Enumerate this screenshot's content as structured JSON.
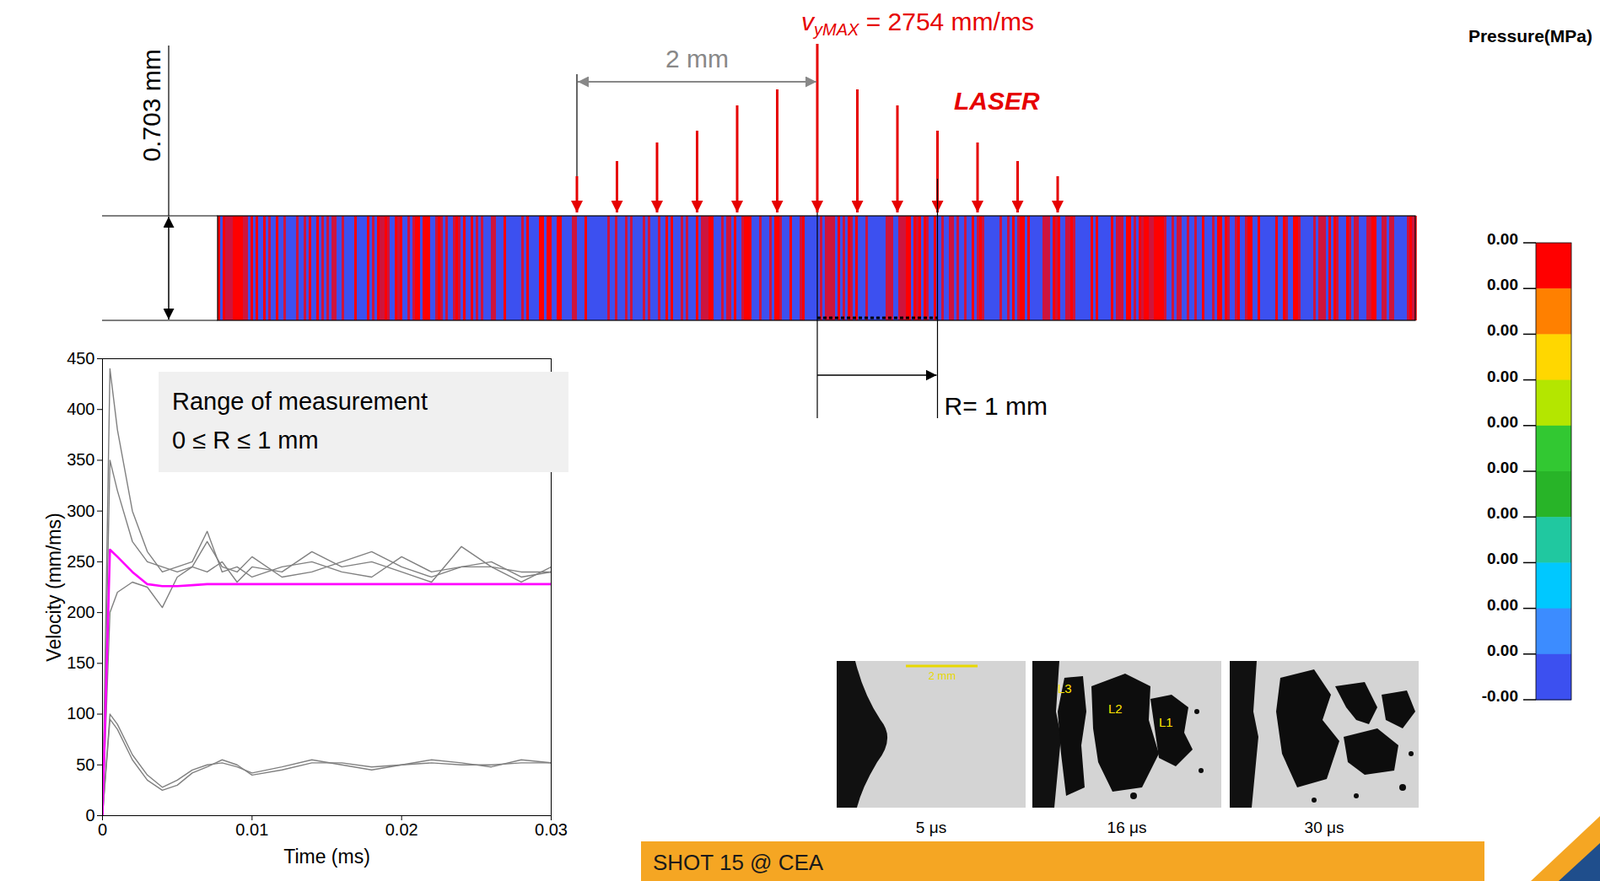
{
  "chart_data": {
    "type": "line",
    "x_label": "Time (ms)",
    "y_label": "Velocity (mm/ms)",
    "xlim": [
      0,
      0.03
    ],
    "ylim": [
      0,
      450
    ],
    "xticks": [
      0,
      0.01,
      0.02,
      0.03
    ],
    "yticks": [
      0,
      50,
      100,
      150,
      200,
      250,
      300,
      350,
      400,
      450
    ],
    "grid": false,
    "annotation": {
      "title": "Range of measurement",
      "text": "0 ≤ R ≤ 1 mm"
    },
    "x": [
      0,
      0.0005,
      0.001,
      0.002,
      0.003,
      0.004,
      0.005,
      0.006,
      0.007,
      0.008,
      0.009,
      0.01,
      0.012,
      0.014,
      0.016,
      0.018,
      0.02,
      0.022,
      0.024,
      0.026,
      0.028,
      0.03
    ],
    "series": [
      {
        "color": "#808080",
        "values": [
          0,
          440,
          380,
          300,
          260,
          240,
          245,
          250,
          280,
          240,
          245,
          235,
          245,
          250,
          240,
          235,
          255,
          240,
          245,
          250,
          235,
          240
        ]
      },
      {
        "color": "#808080",
        "values": [
          0,
          200,
          220,
          230,
          225,
          205,
          235,
          245,
          240,
          250,
          230,
          245,
          240,
          260,
          245,
          250,
          240,
          230,
          265,
          245,
          230,
          245
        ]
      },
      {
        "color": "#808080",
        "values": [
          0,
          350,
          320,
          270,
          250,
          245,
          240,
          245,
          270,
          245,
          240,
          255,
          235,
          240,
          250,
          260,
          245,
          235,
          245,
          245,
          240,
          240
        ]
      },
      {
        "color": "#808080",
        "values": [
          0,
          100,
          90,
          60,
          40,
          28,
          35,
          45,
          50,
          52,
          48,
          42,
          48,
          55,
          50,
          45,
          50,
          55,
          52,
          48,
          55,
          52
        ]
      },
      {
        "color": "#808080",
        "values": [
          0,
          95,
          85,
          55,
          35,
          25,
          30,
          42,
          48,
          55,
          50,
          40,
          45,
          52,
          52,
          48,
          50,
          52,
          50,
          50,
          52,
          52
        ]
      },
      {
        "color": "#ff00ff",
        "values": [
          0,
          262,
          255,
          240,
          228,
          226,
          226,
          227,
          228,
          228,
          228,
          228,
          228,
          228,
          228,
          228,
          228,
          228,
          228,
          228,
          228,
          228
        ]
      }
    ]
  },
  "diagram": {
    "thickness_label": "0.703 mm",
    "spacing_label": "2 mm",
    "velocity_label": {
      "symbol": "v",
      "subscript": "yMAX",
      "text": " = 2754 mm/ms"
    },
    "laser_label": "LASER",
    "radius_label": "R= 1 mm"
  },
  "colorbar": {
    "title": "Pressure(MPa)",
    "ticks": [
      {
        "value": 0,
        "label": "0.00"
      },
      {
        "value": 0,
        "label": "0.00"
      },
      {
        "value": 0,
        "label": "0.00"
      },
      {
        "value": 0,
        "label": "0.00"
      },
      {
        "value": 0,
        "label": "0.00"
      },
      {
        "value": 0,
        "label": "0.00"
      },
      {
        "value": 0,
        "label": "0.00"
      },
      {
        "value": 0,
        "label": "0.00"
      },
      {
        "value": 0,
        "label": "0.00"
      },
      {
        "value": 0,
        "label": "0.00"
      },
      {
        "value": 0,
        "label": "-0.00"
      }
    ],
    "colors": [
      "#ff0000",
      "#ff8000",
      "#ffd700",
      "#b4e600",
      "#32c832",
      "#28b428",
      "#20c8a0",
      "#00c8ff",
      "#3c8cff",
      "#3c50f0"
    ]
  },
  "images": [
    {
      "caption": "5 μs",
      "scale_bar": "2 mm"
    },
    {
      "caption": "16 μs",
      "labels": [
        "L3",
        "L2",
        "L1"
      ]
    },
    {
      "caption": "30 μs"
    }
  ],
  "banner": "SHOT 15 @ CEA"
}
